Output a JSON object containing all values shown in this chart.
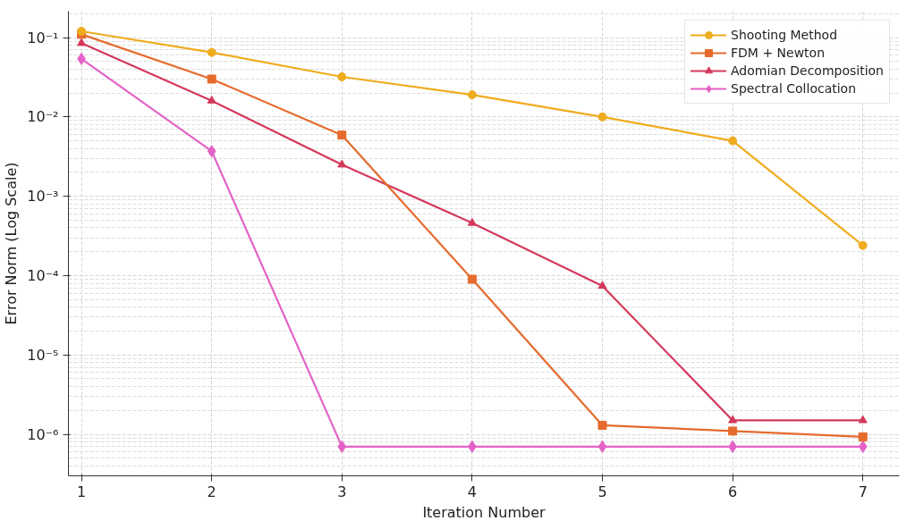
{
  "chart_data": {
    "type": "line",
    "xlabel": "Iteration Number",
    "ylabel": "Error Norm (Log Scale)",
    "x": [
      1,
      2,
      3,
      4,
      5,
      6,
      7
    ],
    "log": "y",
    "grid": true,
    "legend": "top right",
    "line_style": "solid",
    "xlim": [
      0.9,
      7.28
    ],
    "xticks": [
      1,
      2,
      3,
      4,
      5,
      6,
      7
    ],
    "ylim": [
      3e-07,
      0.215
    ],
    "yticks": [
      {
        "value": 0.1,
        "label": "10⁻¹"
      },
      {
        "value": 0.01,
        "label": "10⁻²"
      },
      {
        "value": 0.001,
        "label": "10⁻³"
      },
      {
        "value": 0.0001,
        "label": "10⁻⁴"
      },
      {
        "value": 1e-05,
        "label": "10⁻⁵"
      },
      {
        "value": 1e-06,
        "label": "10⁻⁶"
      }
    ],
    "series": [
      {
        "name": "Shooting Method",
        "color": "#efac1e",
        "marker": "circle",
        "values": [
          0.12,
          0.065,
          0.032,
          0.019,
          0.01,
          0.005,
          0.00024
        ]
      },
      {
        "name": "FDM + Newton",
        "color": "#e56b2c",
        "marker": "square",
        "values": [
          0.11,
          0.03,
          0.0059,
          9e-05,
          1.3e-06,
          1.1e-06,
          9.3e-07
        ]
      },
      {
        "name": "Adomian Decomposition",
        "color": "#d4395c",
        "marker": "triangle",
        "values": [
          0.085,
          0.016,
          0.0025,
          0.00046,
          7.4e-05,
          1.5e-06,
          1.5e-06
        ]
      },
      {
        "name": "Spectral Collocation",
        "color": "#e462c6",
        "marker": "diamond",
        "values": [
          0.054,
          0.0037,
          7e-07,
          7e-07,
          7e-07,
          7e-07,
          7e-07
        ]
      }
    ]
  }
}
